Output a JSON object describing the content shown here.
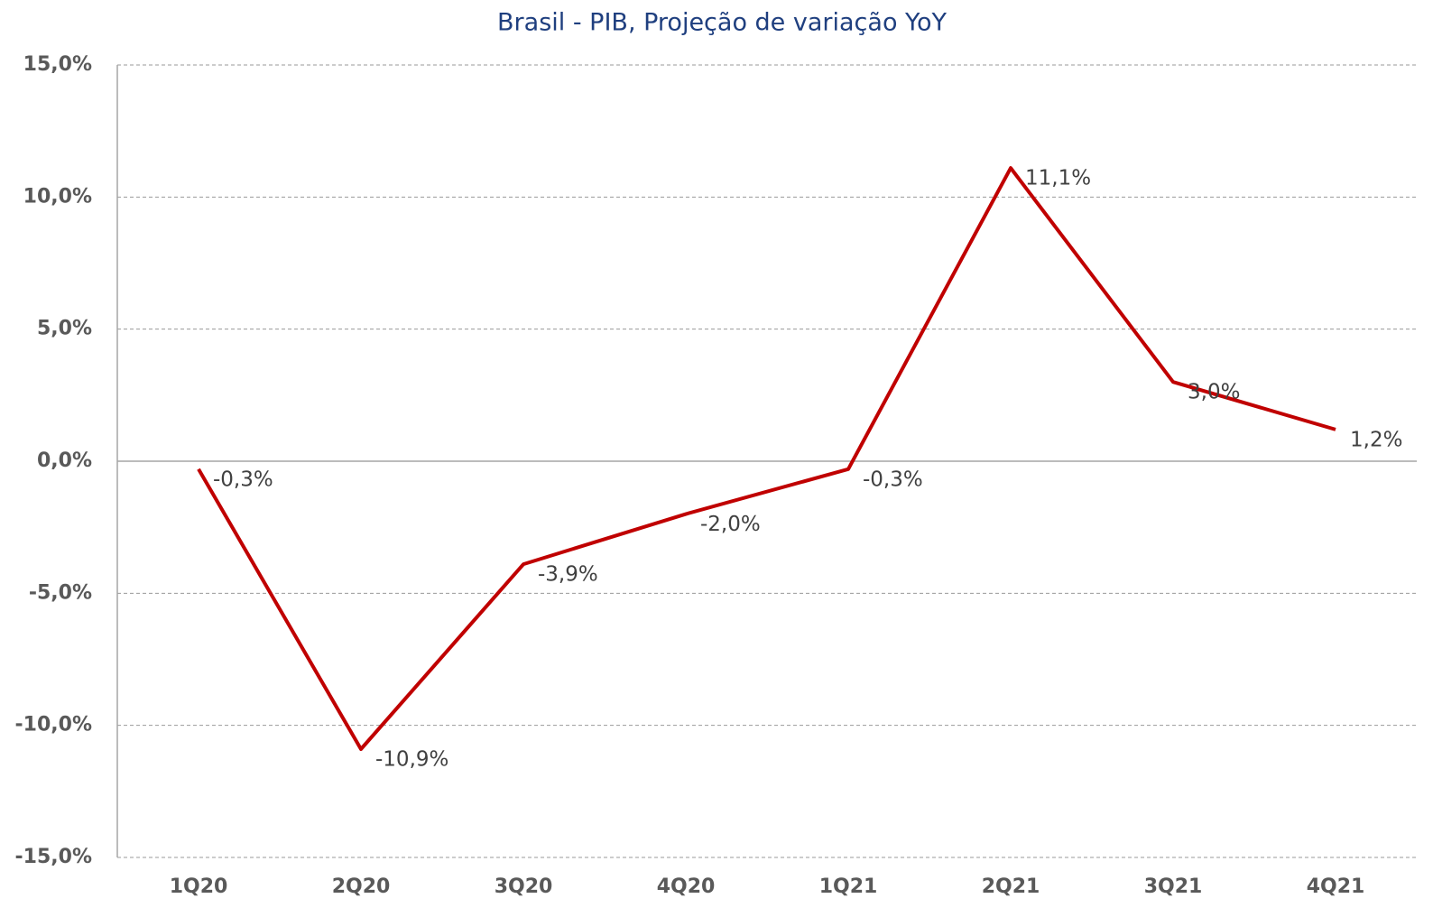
{
  "chart_data": {
    "type": "line",
    "title": "Brasil - PIB, Projeção de variação YoY",
    "categories": [
      "1Q20",
      "2Q20",
      "3Q20",
      "4Q20",
      "1Q21",
      "2Q21",
      "3Q21",
      "4Q21"
    ],
    "series": [
      {
        "name": "PIB",
        "color": "#c00000",
        "values": [
          -0.3,
          -10.9,
          -3.9,
          -2.0,
          -0.3,
          11.1,
          3.0,
          1.2
        ],
        "value_labels": [
          "-0,3%",
          "-10,9%",
          "-3,9%",
          "-2,0%",
          "-0,3%",
          "11,1%",
          "3,0%",
          "1,2%"
        ]
      }
    ],
    "ylim": [
      -15,
      15
    ],
    "yticks": [
      {
        "value": -15,
        "label": "-15,0%"
      },
      {
        "value": -10,
        "label": "-10,0%"
      },
      {
        "value": -5,
        "label": "-5,0%"
      },
      {
        "value": 0,
        "label": "0,0%"
      },
      {
        "value": 5,
        "label": "5,0%"
      },
      {
        "value": 10,
        "label": "10,0%"
      },
      {
        "value": 15,
        "label": "15,0%"
      }
    ],
    "grid": true
  }
}
